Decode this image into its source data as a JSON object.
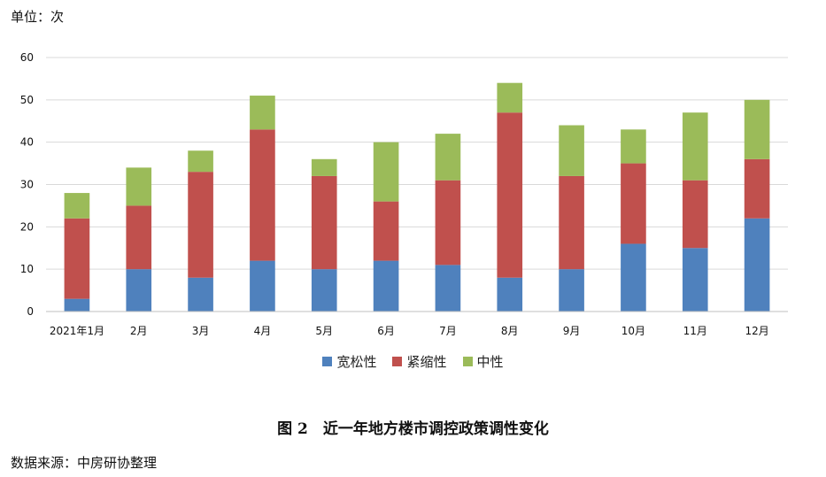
{
  "unit_label": "单位：次",
  "caption": "图 2　近一年地方楼市调控政策调性变化",
  "source": "数据来源：中房研协整理",
  "colors": {
    "loose": "#4F81BD",
    "tight": "#C0504D",
    "neutral": "#9BBB59",
    "grid": "#D9D9D9"
  },
  "chart_data": {
    "type": "bar",
    "stacked": true,
    "categories": [
      "2021年1月",
      "2月",
      "3月",
      "4月",
      "5月",
      "6月",
      "7月",
      "8月",
      "9月",
      "10月",
      "11月",
      "12月"
    ],
    "series": [
      {
        "name": "宽松性",
        "color": "#4F81BD",
        "values": [
          3,
          10,
          8,
          12,
          10,
          12,
          11,
          8,
          10,
          16,
          15,
          22
        ]
      },
      {
        "name": "紧缩性",
        "color": "#C0504D",
        "values": [
          19,
          15,
          25,
          31,
          22,
          14,
          20,
          39,
          22,
          19,
          16,
          14
        ]
      },
      {
        "name": "中性",
        "color": "#9BBB59",
        "values": [
          6,
          9,
          5,
          8,
          4,
          14,
          11,
          7,
          12,
          8,
          16,
          14
        ]
      }
    ],
    "ylim": [
      0,
      60
    ],
    "yticks": [
      0,
      10,
      20,
      30,
      40,
      50,
      60
    ],
    "grid": true,
    "legend_position": "bottom"
  }
}
